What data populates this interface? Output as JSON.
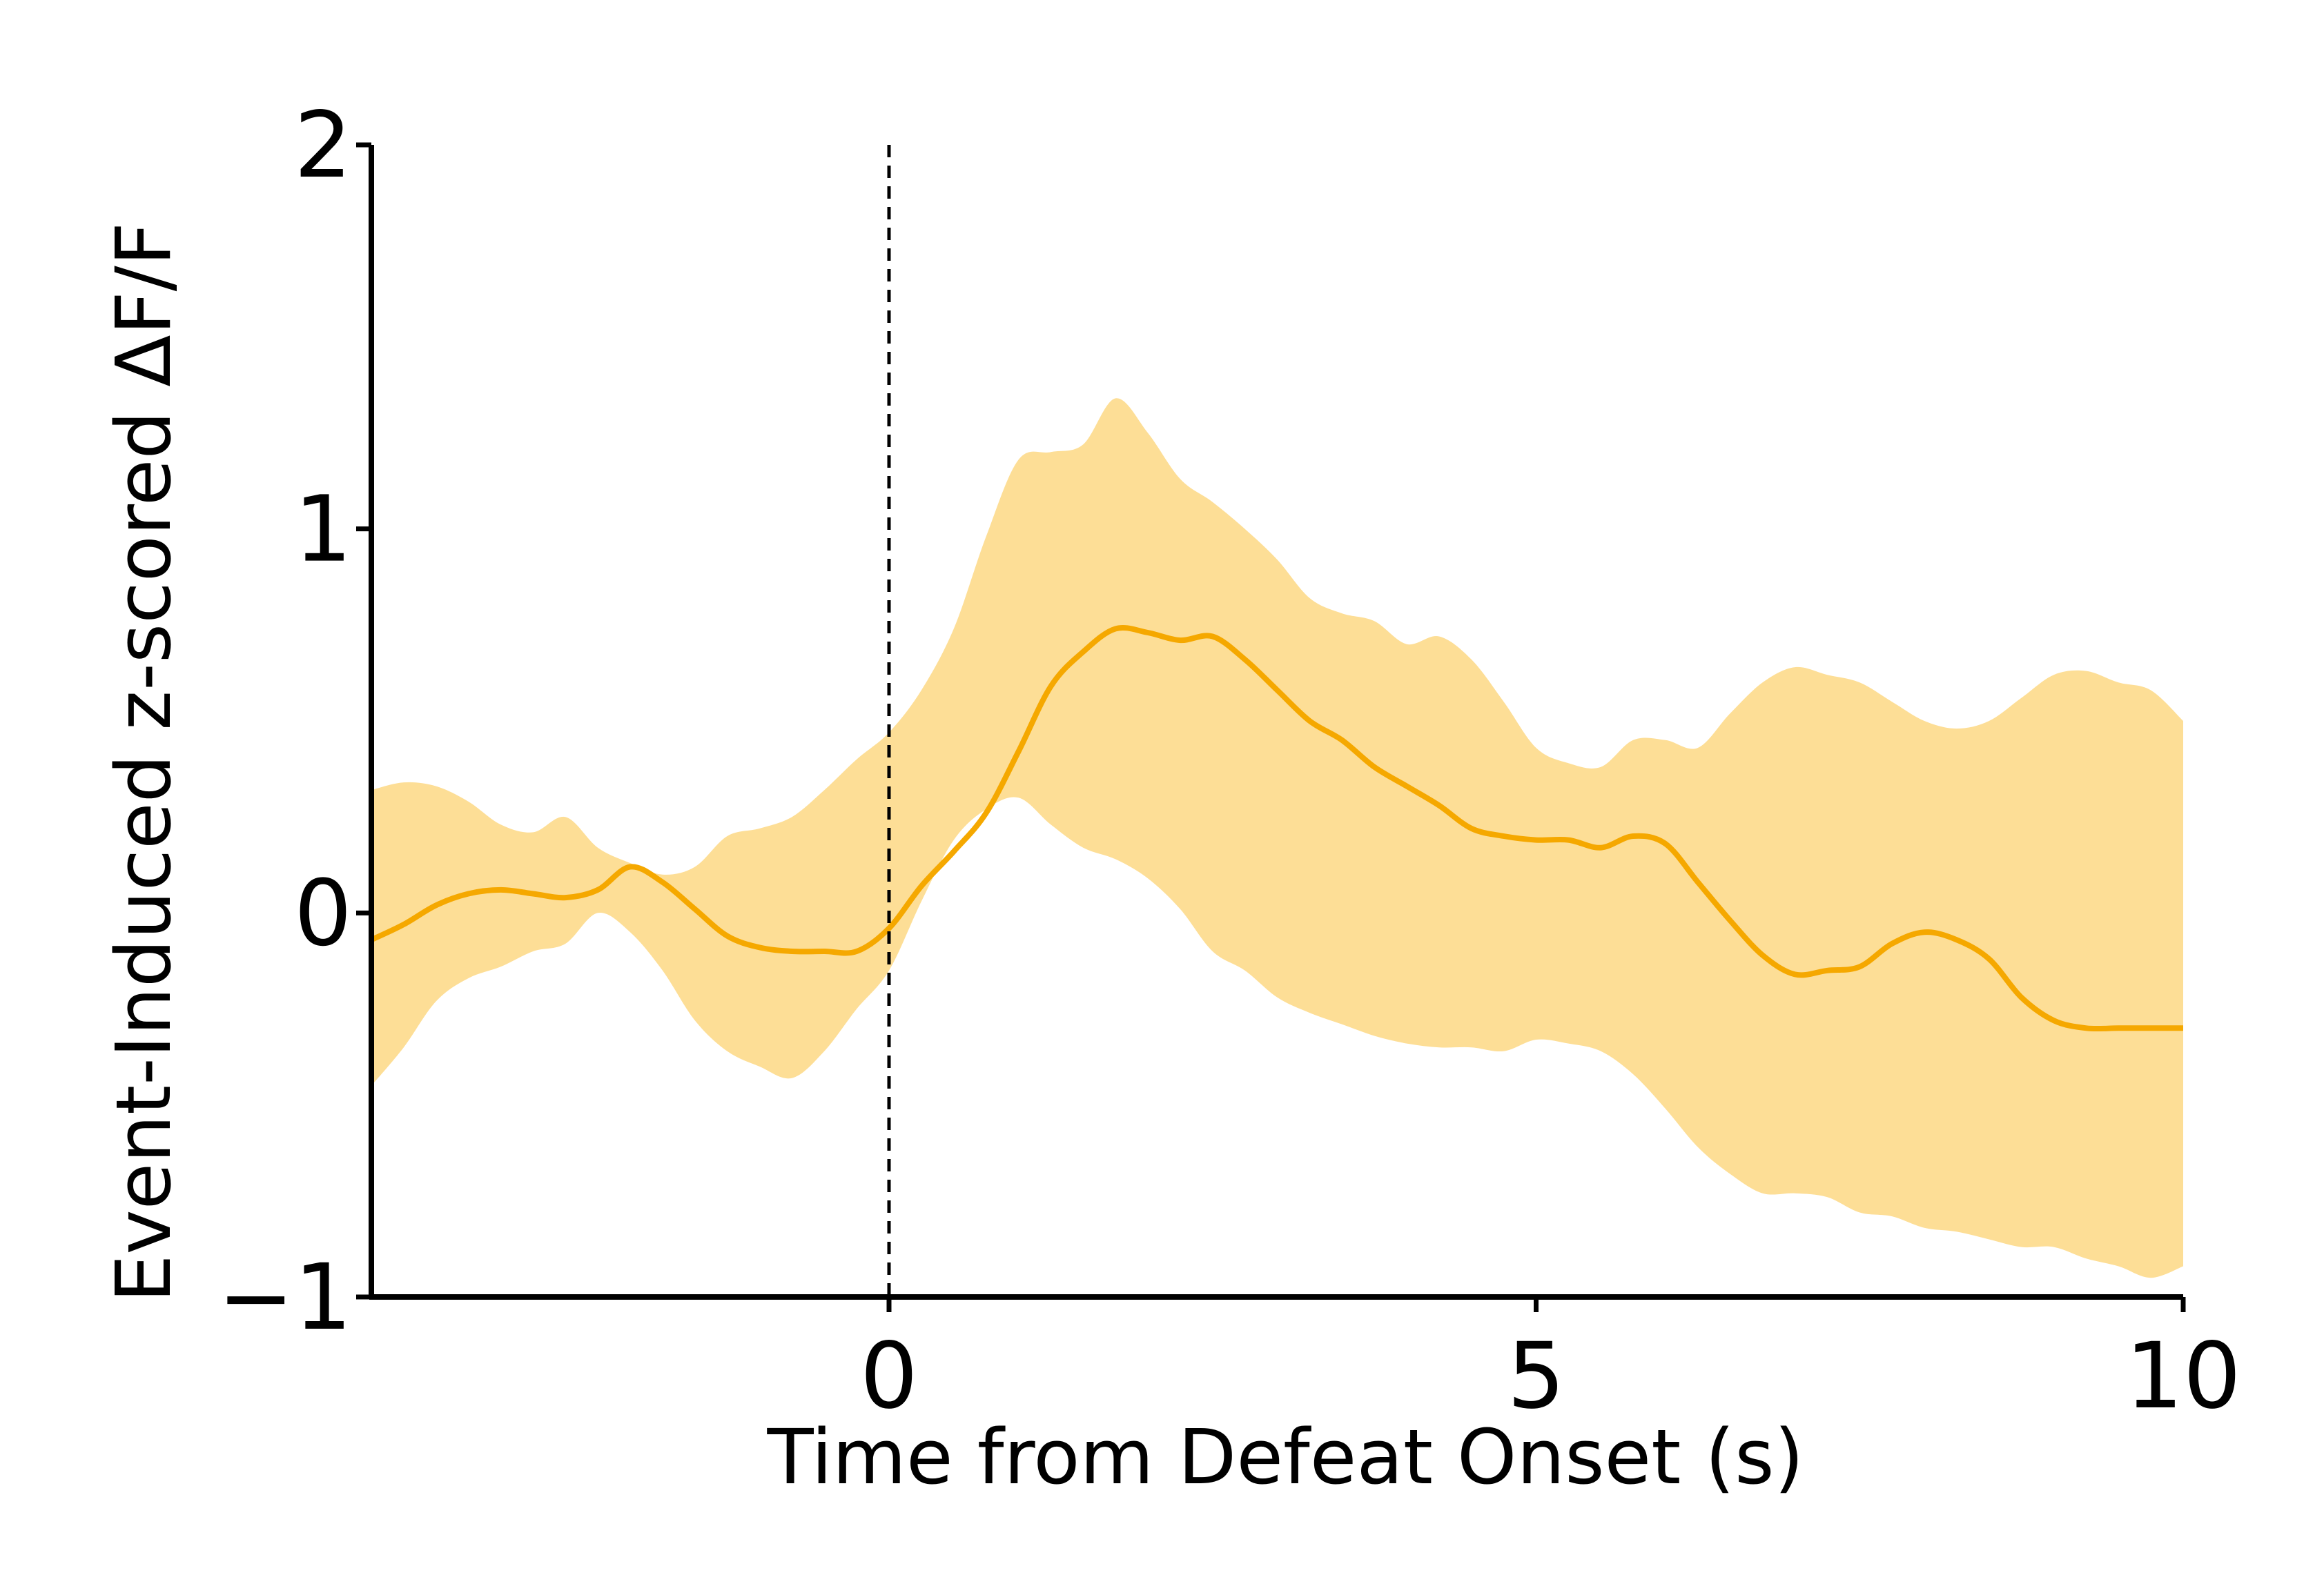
{
  "chart_data": {
    "type": "line",
    "title": "",
    "xlabel": "Time from Defeat Onset (s)",
    "ylabel": "Event-Induced z-scored ΔF/F",
    "xlim": [
      -4,
      10
    ],
    "ylim": [
      -1,
      2
    ],
    "xticks": [
      0,
      5,
      10
    ],
    "xtick_labels": [
      "0",
      "5",
      "10"
    ],
    "yticks": [
      -1,
      0,
      1,
      2
    ],
    "ytick_labels": [
      "−1",
      "0",
      "1",
      "2"
    ],
    "grid": false,
    "legend": null,
    "event_marker": {
      "x": 0,
      "style": "dashed",
      "color": "#000000"
    },
    "colors": {
      "line": "#F5A800",
      "band": "#FDDE96"
    },
    "series": [
      {
        "x": [
          -4.0,
          -3.75,
          -3.5,
          -3.25,
          -3.0,
          -2.75,
          -2.5,
          -2.25,
          -2.0,
          -1.75,
          -1.5,
          -1.25,
          -1.0,
          -0.75,
          -0.5,
          -0.25,
          0.0,
          0.25,
          0.5,
          0.75,
          1.0,
          1.25,
          1.5,
          1.75,
          2.0,
          2.25,
          2.5,
          2.75,
          3.0,
          3.25,
          3.5,
          3.75,
          4.0,
          4.25,
          4.5,
          4.75,
          5.0,
          5.25,
          5.5,
          5.75,
          6.0,
          6.25,
          6.5,
          6.75,
          7.0,
          7.25,
          7.5,
          7.75,
          8.0,
          8.25,
          8.5,
          8.75,
          9.0,
          9.25,
          9.5,
          9.75,
          10.0
        ],
        "mean": [
          -0.07,
          -0.03,
          0.02,
          0.05,
          0.06,
          0.05,
          0.04,
          0.06,
          0.12,
          0.08,
          0.01,
          -0.06,
          -0.09,
          -0.1,
          -0.1,
          -0.1,
          -0.04,
          0.07,
          0.16,
          0.26,
          0.42,
          0.59,
          0.68,
          0.74,
          0.73,
          0.71,
          0.72,
          0.66,
          0.58,
          0.5,
          0.45,
          0.38,
          0.33,
          0.28,
          0.22,
          0.2,
          0.19,
          0.19,
          0.17,
          0.2,
          0.18,
          0.08,
          -0.02,
          -0.11,
          -0.16,
          -0.15,
          -0.14,
          -0.08,
          -0.05,
          -0.07,
          -0.12,
          -0.22,
          -0.28,
          -0.3,
          -0.3,
          -0.3,
          -0.3
        ],
        "upper": [
          0.32,
          0.34,
          0.33,
          0.29,
          0.23,
          0.21,
          0.25,
          0.17,
          0.13,
          0.1,
          0.12,
          0.2,
          0.22,
          0.25,
          0.32,
          0.4,
          0.47,
          0.58,
          0.74,
          0.98,
          1.18,
          1.2,
          1.22,
          1.34,
          1.25,
          1.13,
          1.07,
          1.0,
          0.92,
          0.82,
          0.78,
          0.76,
          0.7,
          0.72,
          0.66,
          0.55,
          0.43,
          0.39,
          0.38,
          0.45,
          0.45,
          0.43,
          0.52,
          0.6,
          0.64,
          0.62,
          0.6,
          0.55,
          0.5,
          0.48,
          0.5,
          0.56,
          0.62,
          0.63,
          0.6,
          0.58,
          0.5
        ],
        "lower": [
          -0.45,
          -0.35,
          -0.23,
          -0.17,
          -0.14,
          -0.1,
          -0.08,
          0.0,
          -0.05,
          -0.15,
          -0.28,
          -0.36,
          -0.4,
          -0.43,
          -0.36,
          -0.25,
          -0.15,
          0.03,
          0.19,
          0.27,
          0.3,
          0.23,
          0.17,
          0.14,
          0.09,
          0.01,
          -0.1,
          -0.15,
          -0.22,
          -0.26,
          -0.29,
          -0.32,
          -0.34,
          -0.35,
          -0.35,
          -0.36,
          -0.33,
          -0.34,
          -0.36,
          -0.42,
          -0.51,
          -0.61,
          -0.68,
          -0.73,
          -0.73,
          -0.74,
          -0.78,
          -0.79,
          -0.82,
          -0.83,
          -0.85,
          -0.87,
          -0.87,
          -0.9,
          -0.92,
          -0.95,
          -0.92
        ]
      }
    ]
  }
}
